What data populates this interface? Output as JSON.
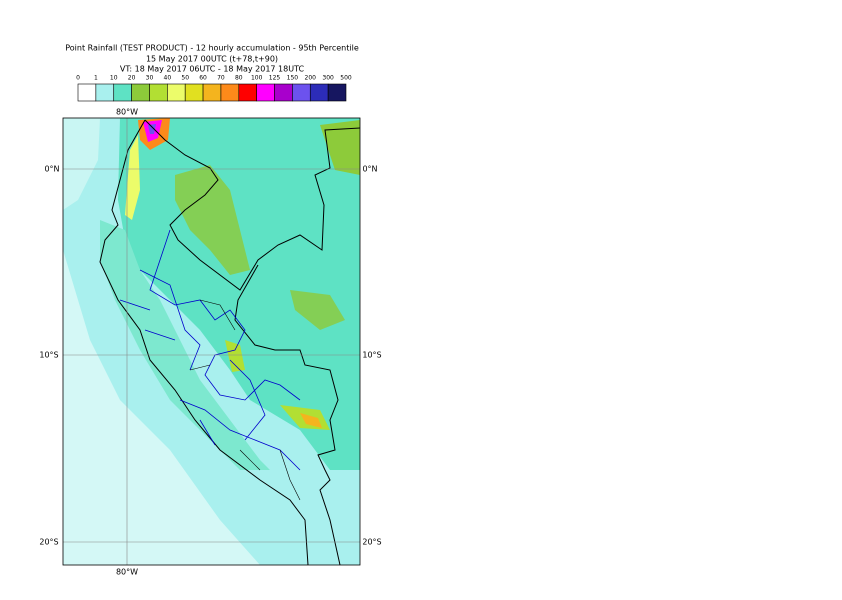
{
  "header": {
    "title": [
      "Point Rainfall (TEST PRODUCT) - 12 hourly accumulation - 95th Percentile",
      "15 May 2017 00UTC (t+78,t+90)",
      "VT: 18 May 2017 06UTC - 18 May 2017 18UTC"
    ]
  },
  "legend": {
    "levels": [
      0,
      1,
      10,
      20,
      30,
      40,
      50,
      60,
      70,
      80,
      100,
      125,
      150,
      200,
      300,
      500
    ],
    "colors": [
      "#ffffff",
      "#a9f0ee",
      "#5ee2c4",
      "#8dcb3a",
      "#b2df33",
      "#ecfc6a",
      "#e1e020",
      "#f4b41e",
      "#fd8a1a",
      "#ff0000",
      "#ff00ff",
      "#a800cc",
      "#6c52ee",
      "#2c2cb8",
      "#161660"
    ]
  },
  "map": {
    "lat_labels": [
      "0°N",
      "10°S",
      "20°S"
    ],
    "lon_label": "80°W"
  }
}
